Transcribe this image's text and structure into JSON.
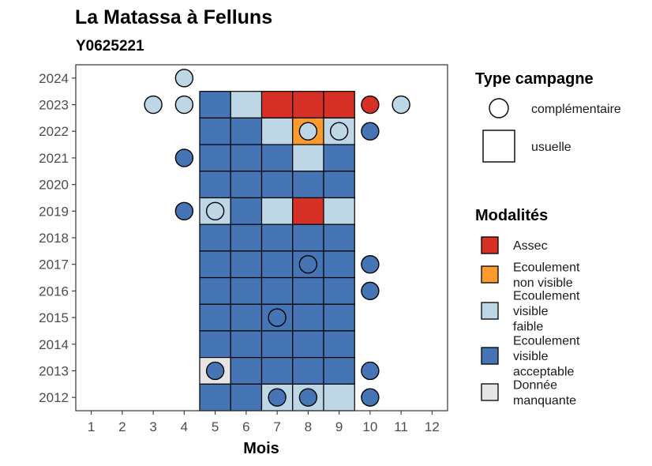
{
  "chart_data": {
    "type": "heatmap",
    "title": "La Matassa à Felluns",
    "subtitle": "Y0625221",
    "xlabel": "Mois",
    "ylabel": "",
    "x_ticks": [
      1,
      2,
      3,
      4,
      5,
      6,
      7,
      8,
      9,
      10,
      11,
      12
    ],
    "y_ticks": [
      2012,
      2013,
      2014,
      2015,
      2016,
      2017,
      2018,
      2019,
      2020,
      2021,
      2022,
      2023,
      2024
    ],
    "xlim": [
      0.5,
      12.5
    ],
    "ylim": [
      2011.5,
      2024.5
    ],
    "grid": false,
    "legend_position": "right",
    "colors": {
      "Assec": "#d73027",
      "Ecoulement non visible": "#fd9a2f",
      "Ecoulement visible faible": "#bdd7e7",
      "Ecoulement visible acceptable": "#4575b4",
      "Donnée manquante": "#e5e5e5"
    },
    "legend_type": {
      "title": "Type campagne",
      "entries": [
        {
          "label": "complémentaire",
          "shape": "circle"
        },
        {
          "label": "usuelle",
          "shape": "square"
        }
      ]
    },
    "legend_modalites": {
      "title": "Modalités",
      "entries": [
        {
          "key": "Assec",
          "lines": [
            "Assec"
          ]
        },
        {
          "key": "Ecoulement non visible",
          "lines": [
            "Ecoulement",
            "non visible"
          ]
        },
        {
          "key": "Ecoulement visible faible",
          "lines": [
            "Ecoulement",
            "visible",
            "faible"
          ]
        },
        {
          "key": "Ecoulement visible acceptable",
          "lines": [
            "Ecoulement",
            "visible",
            "acceptable"
          ]
        },
        {
          "key": "Donnée manquante",
          "lines": [
            "Donnée",
            "manquante"
          ]
        }
      ]
    },
    "usuelle": [
      {
        "year": 2023,
        "month": 5,
        "value": "Ecoulement visible acceptable"
      },
      {
        "year": 2023,
        "month": 6,
        "value": "Ecoulement visible faible"
      },
      {
        "year": 2023,
        "month": 7,
        "value": "Assec"
      },
      {
        "year": 2023,
        "month": 8,
        "value": "Assec"
      },
      {
        "year": 2023,
        "month": 9,
        "value": "Assec"
      },
      {
        "year": 2022,
        "month": 5,
        "value": "Ecoulement visible acceptable"
      },
      {
        "year": 2022,
        "month": 6,
        "value": "Ecoulement visible acceptable"
      },
      {
        "year": 2022,
        "month": 7,
        "value": "Ecoulement visible faible"
      },
      {
        "year": 2022,
        "month": 8,
        "value": "Ecoulement non visible"
      },
      {
        "year": 2022,
        "month": 9,
        "value": "Ecoulement visible faible"
      },
      {
        "year": 2021,
        "month": 5,
        "value": "Ecoulement visible acceptable"
      },
      {
        "year": 2021,
        "month": 6,
        "value": "Ecoulement visible acceptable"
      },
      {
        "year": 2021,
        "month": 7,
        "value": "Ecoulement visible acceptable"
      },
      {
        "year": 2021,
        "month": 8,
        "value": "Ecoulement visible faible"
      },
      {
        "year": 2021,
        "month": 9,
        "value": "Ecoulement visible acceptable"
      },
      {
        "year": 2020,
        "month": 5,
        "value": "Ecoulement visible acceptable"
      },
      {
        "year": 2020,
        "month": 6,
        "value": "Ecoulement visible acceptable"
      },
      {
        "year": 2020,
        "month": 7,
        "value": "Ecoulement visible acceptable"
      },
      {
        "year": 2020,
        "month": 8,
        "value": "Ecoulement visible acceptable"
      },
      {
        "year": 2020,
        "month": 9,
        "value": "Ecoulement visible acceptable"
      },
      {
        "year": 2019,
        "month": 5,
        "value": "Ecoulement visible faible"
      },
      {
        "year": 2019,
        "month": 6,
        "value": "Ecoulement visible acceptable"
      },
      {
        "year": 2019,
        "month": 7,
        "value": "Ecoulement visible faible"
      },
      {
        "year": 2019,
        "month": 8,
        "value": "Assec"
      },
      {
        "year": 2019,
        "month": 9,
        "value": "Ecoulement visible faible"
      },
      {
        "year": 2018,
        "month": 5,
        "value": "Ecoulement visible acceptable"
      },
      {
        "year": 2018,
        "month": 6,
        "value": "Ecoulement visible acceptable"
      },
      {
        "year": 2018,
        "month": 7,
        "value": "Ecoulement visible acceptable"
      },
      {
        "year": 2018,
        "month": 8,
        "value": "Ecoulement visible acceptable"
      },
      {
        "year": 2018,
        "month": 9,
        "value": "Ecoulement visible acceptable"
      },
      {
        "year": 2017,
        "month": 5,
        "value": "Ecoulement visible acceptable"
      },
      {
        "year": 2017,
        "month": 6,
        "value": "Ecoulement visible acceptable"
      },
      {
        "year": 2017,
        "month": 7,
        "value": "Ecoulement visible acceptable"
      },
      {
        "year": 2017,
        "month": 8,
        "value": "Ecoulement visible acceptable"
      },
      {
        "year": 2017,
        "month": 9,
        "value": "Ecoulement visible acceptable"
      },
      {
        "year": 2016,
        "month": 5,
        "value": "Ecoulement visible acceptable"
      },
      {
        "year": 2016,
        "month": 6,
        "value": "Ecoulement visible acceptable"
      },
      {
        "year": 2016,
        "month": 7,
        "value": "Ecoulement visible acceptable"
      },
      {
        "year": 2016,
        "month": 8,
        "value": "Ecoulement visible acceptable"
      },
      {
        "year": 2016,
        "month": 9,
        "value": "Ecoulement visible acceptable"
      },
      {
        "year": 2015,
        "month": 5,
        "value": "Ecoulement visible acceptable"
      },
      {
        "year": 2015,
        "month": 6,
        "value": "Ecoulement visible acceptable"
      },
      {
        "year": 2015,
        "month": 7,
        "value": "Ecoulement visible acceptable"
      },
      {
        "year": 2015,
        "month": 8,
        "value": "Ecoulement visible acceptable"
      },
      {
        "year": 2015,
        "month": 9,
        "value": "Ecoulement visible acceptable"
      },
      {
        "year": 2014,
        "month": 5,
        "value": "Ecoulement visible acceptable"
      },
      {
        "year": 2014,
        "month": 6,
        "value": "Ecoulement visible acceptable"
      },
      {
        "year": 2014,
        "month": 7,
        "value": "Ecoulement visible acceptable"
      },
      {
        "year": 2014,
        "month": 8,
        "value": "Ecoulement visible acceptable"
      },
      {
        "year": 2014,
        "month": 9,
        "value": "Ecoulement visible acceptable"
      },
      {
        "year": 2013,
        "month": 5,
        "value": "Donnée manquante"
      },
      {
        "year": 2013,
        "month": 6,
        "value": "Ecoulement visible acceptable"
      },
      {
        "year": 2013,
        "month": 7,
        "value": "Ecoulement visible acceptable"
      },
      {
        "year": 2013,
        "month": 8,
        "value": "Ecoulement visible acceptable"
      },
      {
        "year": 2013,
        "month": 9,
        "value": "Ecoulement visible acceptable"
      },
      {
        "year": 2012,
        "month": 5,
        "value": "Ecoulement visible acceptable"
      },
      {
        "year": 2012,
        "month": 6,
        "value": "Ecoulement visible acceptable"
      },
      {
        "year": 2012,
        "month": 7,
        "value": "Ecoulement visible faible"
      },
      {
        "year": 2012,
        "month": 8,
        "value": "Ecoulement visible faible"
      },
      {
        "year": 2012,
        "month": 9,
        "value": "Ecoulement visible faible"
      }
    ],
    "complementaire": [
      {
        "year": 2024,
        "month": 4,
        "value": "Ecoulement visible faible"
      },
      {
        "year": 2023,
        "month": 3,
        "value": "Ecoulement visible faible"
      },
      {
        "year": 2023,
        "month": 4,
        "value": "Ecoulement visible faible"
      },
      {
        "year": 2023,
        "month": 10,
        "value": "Assec"
      },
      {
        "year": 2023,
        "month": 11,
        "value": "Ecoulement visible faible"
      },
      {
        "year": 2022,
        "month": 8,
        "value": "Ecoulement visible faible"
      },
      {
        "year": 2022,
        "month": 9,
        "value": "Ecoulement visible faible"
      },
      {
        "year": 2022,
        "month": 10,
        "value": "Ecoulement visible acceptable"
      },
      {
        "year": 2021,
        "month": 4,
        "value": "Ecoulement visible acceptable"
      },
      {
        "year": 2019,
        "month": 4,
        "value": "Ecoulement visible acceptable"
      },
      {
        "year": 2019,
        "month": 5,
        "value": "Ecoulement visible faible"
      },
      {
        "year": 2017,
        "month": 8,
        "value": "Ecoulement visible acceptable"
      },
      {
        "year": 2017,
        "month": 10,
        "value": "Ecoulement visible acceptable"
      },
      {
        "year": 2016,
        "month": 10,
        "value": "Ecoulement visible acceptable"
      },
      {
        "year": 2015,
        "month": 7,
        "value": "Ecoulement visible acceptable"
      },
      {
        "year": 2013,
        "month": 5,
        "value": "Ecoulement visible acceptable"
      },
      {
        "year": 2013,
        "month": 10,
        "value": "Ecoulement visible acceptable"
      },
      {
        "year": 2012,
        "month": 7,
        "value": "Ecoulement visible acceptable"
      },
      {
        "year": 2012,
        "month": 8,
        "value": "Ecoulement visible acceptable"
      },
      {
        "year": 2012,
        "month": 10,
        "value": "Ecoulement visible acceptable"
      }
    ]
  }
}
